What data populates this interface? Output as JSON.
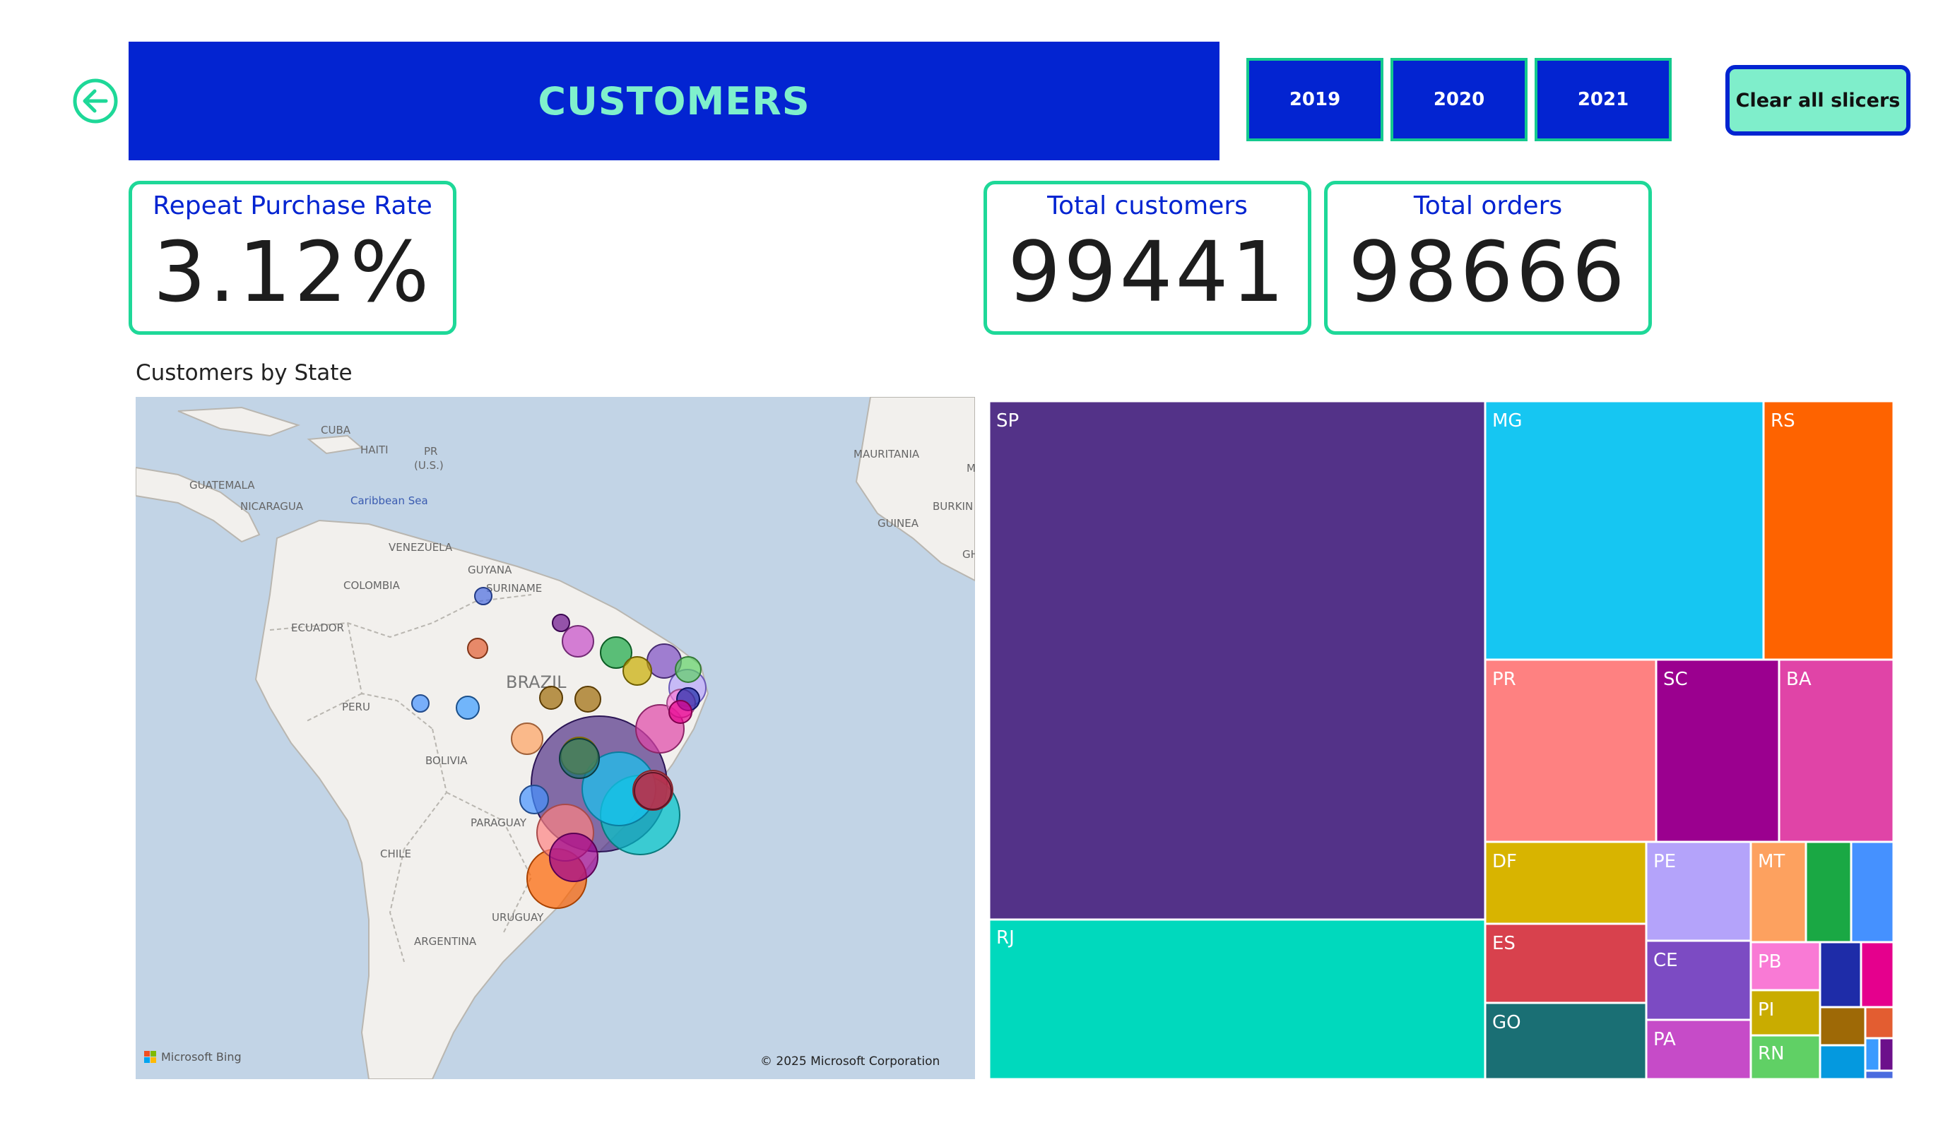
{
  "page": {
    "title": "CUSTOMERS"
  },
  "slicers": {
    "years": [
      "2019",
      "2020",
      "2021"
    ],
    "clear_label": "Clear all slicers"
  },
  "kpis": {
    "repeat_rate": {
      "label": "Repeat Purchase Rate",
      "value": "3.12%"
    },
    "total_customers": {
      "label": "Total customers",
      "value": "99441"
    },
    "total_orders": {
      "label": "Total orders",
      "value": "98666"
    }
  },
  "map": {
    "title": "Customers by State",
    "region_labels": {
      "cuba": "CUBA",
      "haiti": "HAITI",
      "pr": "PR",
      "pr_us": "(U.S.)",
      "guatemala": "GUATEMALA",
      "nicaragua": "NICARAGUA",
      "caribbean": "Caribbean Sea",
      "venezuela": "VENEZUELA",
      "guyana": "GUYANA",
      "suriname": "SURINAME",
      "colombia": "COLOMBIA",
      "ecuador": "ECUADOR",
      "brazil": "BRAZIL",
      "peru": "PERU",
      "bolivia": "BOLIVIA",
      "paraguay": "PARAGUAY",
      "chile": "CHILE",
      "uruguay": "URUGUAY",
      "argentina": "ARGENTINA",
      "mauritania": "MAURITANIA",
      "m": "M",
      "burkina": "BURKIN",
      "guinea": "GUINEA",
      "gh": "GH"
    },
    "attribution": {
      "bing": "Microsoft Bing",
      "copyright": "© 2025 Microsoft Corporation"
    },
    "colors": {
      "water": "#c2d4e6",
      "land": "#f2f0ed",
      "border": "#b9b6b0"
    }
  },
  "treemap": {
    "labels": {
      "sp": "SP",
      "rj": "RJ",
      "mg": "MG",
      "rs": "RS",
      "pr": "PR",
      "sc": "SC",
      "ba": "BA",
      "df": "DF",
      "es": "ES",
      "go": "GO",
      "pe": "PE",
      "ce": "CE",
      "pa": "PA",
      "mt": "MT",
      "pb": "PB",
      "pi": "PI",
      "rn": "RN"
    },
    "colors": {
      "sp": "#533288",
      "rj": "#00d9bd",
      "mg": "#16c6f2",
      "rs": "#fe6300",
      "pr": "#fe8181",
      "sc": "#9b008f",
      "ba": "#e044a7",
      "df": "#d8b400",
      "es": "#d8414d",
      "go": "#1a6f74",
      "pe": "#b4a3fa",
      "ce": "#7c4bc3",
      "pa": "#c64bc8",
      "mt": "#fda15f",
      "pb": "#f97ad5",
      "pi": "#c9ac00",
      "rn": "#60d065",
      "u1": "#1aa844",
      "u2": "#4591ff",
      "u3": "#1e2ca8",
      "u4": "#e5008d",
      "u5": "#9e6906",
      "u6": "#e35d31",
      "u7": "#0499df",
      "u8": "#3a9bff",
      "u9": "#6c108b",
      "u10": "#4a6bdf"
    }
  },
  "colors": {
    "accent_blue": "#0324d1",
    "accent_green": "#1ed898"
  }
}
